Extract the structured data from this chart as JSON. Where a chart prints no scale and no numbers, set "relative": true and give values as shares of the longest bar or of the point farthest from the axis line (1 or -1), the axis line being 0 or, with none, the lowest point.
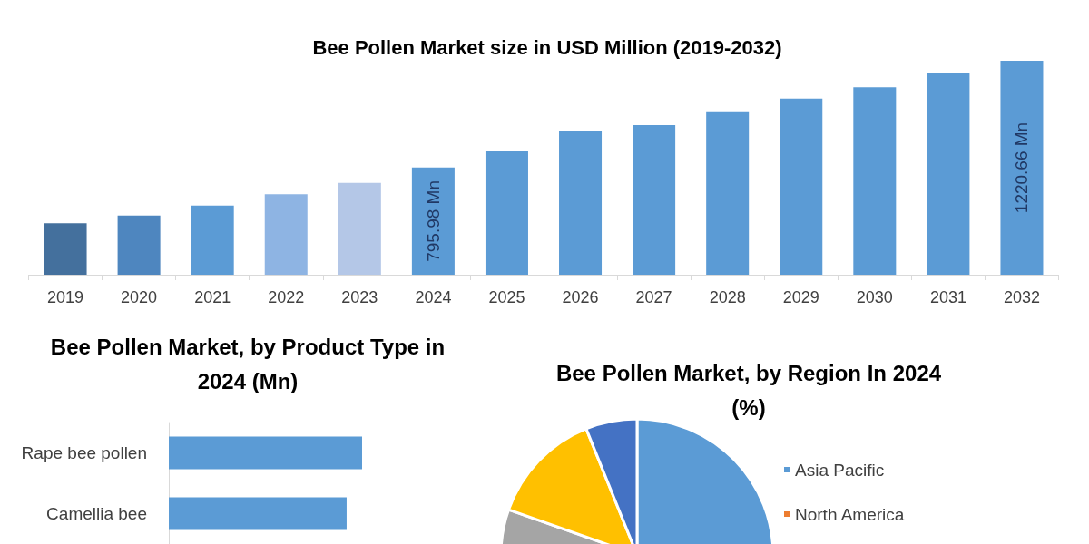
{
  "chart_data": [
    {
      "type": "bar",
      "title": "Bee Pollen Market size in USD Million (2019-2032)",
      "categories": [
        "2019",
        "2020",
        "2021",
        "2022",
        "2023",
        "2024",
        "2025",
        "2026",
        "2027",
        "2028",
        "2029",
        "2030",
        "2031",
        "2032"
      ],
      "values": [
        575,
        605,
        645,
        690,
        735,
        795.98,
        860,
        940,
        965,
        1020,
        1070,
        1115,
        1170,
        1220.66
      ],
      "colors": [
        "#44709d",
        "#4e86bf",
        "#5b9bd5",
        "#8eb4e3",
        "#b4c7e7",
        "#5b9bd5",
        "#5b9bd5",
        "#5b9bd5",
        "#5b9bd5",
        "#5b9bd5",
        "#5b9bd5",
        "#5b9bd5",
        "#5b9bd5",
        "#5b9bd5"
      ],
      "value_labels": [
        null,
        null,
        null,
        null,
        null,
        "795.98 Mn",
        null,
        null,
        null,
        null,
        null,
        null,
        null,
        "1220.66 Mn"
      ],
      "ylim": [
        370,
        1220.66
      ],
      "tick_labels": "x"
    },
    {
      "type": "bar",
      "orientation": "horizontal",
      "relative": true,
      "title": "Bee Pollen Market, by Product Type in 2024 (Mn)",
      "categories": [
        "Rape bee pollen",
        "Camellia bee"
      ],
      "values": [
        1,
        0.92
      ],
      "color": "#5b9bd5"
    },
    {
      "type": "pie",
      "title": "Bee Pollen Market, by Region In 2024 (%)",
      "categories": [
        "Asia Pacific",
        "North America",
        null,
        null,
        null
      ],
      "values": [
        50,
        null,
        30.4,
        13.5,
        6.1
      ],
      "colors": [
        "#5b9bd5",
        "#ed7d31",
        "#a5a5a5",
        "#ffc000",
        "#4472c4"
      ],
      "legend": "right"
    }
  ]
}
